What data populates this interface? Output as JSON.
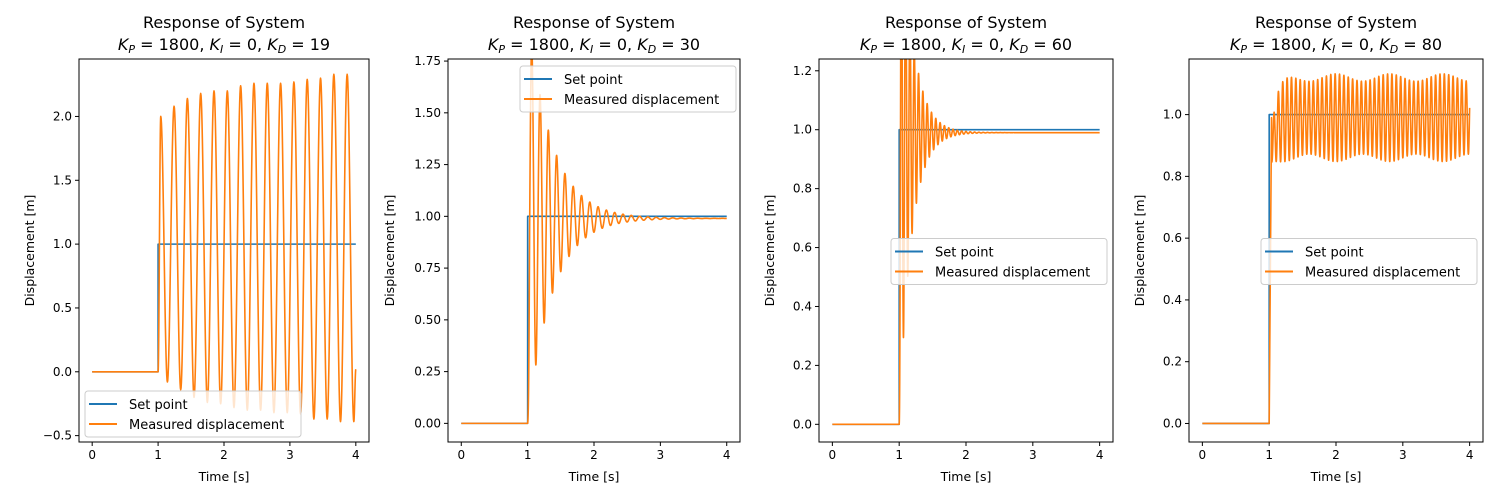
{
  "figure": {
    "colors": {
      "setpoint": "#1f77b4",
      "measured": "#ff7f0e",
      "axes": "#000000",
      "legend_border": "#cccccc"
    }
  },
  "chart_data": [
    {
      "type": "line",
      "title": "Response of System",
      "subtitle": {
        "kp": "1800",
        "ki": "0",
        "kd": "19"
      },
      "xlabel": "Time [s]",
      "ylabel": "Displacement [m]",
      "xlim": [
        -0.2,
        4.2
      ],
      "ylim": [
        -0.55,
        2.45
      ],
      "xticks": [
        0,
        1,
        2,
        3,
        4
      ],
      "yticks": [
        -0.5,
        0.0,
        0.5,
        1.0,
        1.5,
        2.0
      ],
      "ytick_labels": [
        "−0.5",
        "0.0",
        "0.5",
        "1.0",
        "1.5",
        "2.0"
      ],
      "grid": false,
      "legend": {
        "placement": "lower-left",
        "entries": [
          "Set point",
          "Measured displacement"
        ]
      },
      "series": [
        {
          "name": "Set point",
          "kind": "step",
          "t_step": 1.0,
          "before": 0.0,
          "after": 1.0,
          "t_end": 4.0
        },
        {
          "name": "Measured displacement",
          "kind": "sustained",
          "t_step": 1.0,
          "t_end": 4.0,
          "freq_hz": 4.95,
          "peaks": [
            2.0,
            2.08,
            2.14,
            2.18,
            2.2,
            2.2,
            2.24,
            2.26,
            2.26,
            2.26,
            2.27,
            2.29,
            2.3,
            2.33,
            2.33
          ],
          "troughs": [
            -0.08,
            -0.14,
            -0.2,
            -0.24,
            -0.25,
            -0.28,
            -0.3,
            -0.3,
            -0.32,
            -0.32,
            -0.33,
            -0.37,
            -0.37,
            -0.39,
            -0.39
          ],
          "end_value": 0.02
        }
      ]
    },
    {
      "type": "line",
      "title": "Response of System",
      "subtitle": {
        "kp": "1800",
        "ki": "0",
        "kd": "30"
      },
      "xlabel": "Time [s]",
      "ylabel": "Displacement [m]",
      "xlim": [
        -0.2,
        4.2
      ],
      "ylim": [
        -0.09,
        1.76
      ],
      "xticks": [
        0,
        1,
        2,
        3,
        4
      ],
      "yticks": [
        0.0,
        0.25,
        0.5,
        0.75,
        1.0,
        1.25,
        1.5,
        1.75
      ],
      "ytick_labels": [
        "0.00",
        "0.25",
        "0.50",
        "0.75",
        "1.00",
        "1.25",
        "1.50",
        "1.75"
      ],
      "grid": false,
      "legend": {
        "placement": "upper-right",
        "entries": [
          "Set point",
          "Measured displacement"
        ]
      },
      "series": [
        {
          "name": "Set point",
          "kind": "step",
          "t_step": 1.0,
          "before": 0.0,
          "after": 1.0,
          "t_end": 4.0
        },
        {
          "name": "Measured displacement",
          "kind": "damped",
          "t_step": 1.0,
          "t_end": 4.0,
          "freq_hz": 8.0,
          "decay": 2.7,
          "amp": 0.68,
          "steady": 0.99,
          "first_peak": 1.67,
          "first_trough": 0.47
        }
      ]
    },
    {
      "type": "line",
      "title": "Response of System",
      "subtitle": {
        "kp": "1800",
        "ki": "0",
        "kd": "60"
      },
      "xlabel": "Time [s]",
      "ylabel": "Displacement [m]",
      "xlim": [
        -0.2,
        4.2
      ],
      "ylim": [
        -0.06,
        1.24
      ],
      "xticks": [
        0,
        1,
        2,
        3,
        4
      ],
      "yticks": [
        0.0,
        0.2,
        0.4,
        0.6,
        0.8,
        1.0,
        1.2
      ],
      "ytick_labels": [
        "0.0",
        "0.2",
        "0.4",
        "0.6",
        "0.8",
        "1.0",
        "1.2"
      ],
      "grid": false,
      "legend": {
        "placement": "center-right",
        "entries": [
          "Set point",
          "Measured displacement"
        ]
      },
      "series": [
        {
          "name": "Set point",
          "kind": "step",
          "t_step": 1.0,
          "before": 0.0,
          "after": 1.0,
          "t_end": 4.0
        },
        {
          "name": "Measured displacement",
          "kind": "damped",
          "t_step": 1.0,
          "t_end": 4.0,
          "freq_hz": 15.5,
          "decay": 5.5,
          "amp": 0.19,
          "steady": 0.99,
          "first_peak": 1.18,
          "first_trough": 0.86
        }
      ]
    },
    {
      "type": "line",
      "title": "Response of System",
      "subtitle": {
        "kp": "1800",
        "ki": "0",
        "kd": "80"
      },
      "xlabel": "Time [s]",
      "ylabel": "Displacement [m]",
      "xlim": [
        -0.2,
        4.2
      ],
      "ylim": [
        -0.06,
        1.18
      ],
      "xticks": [
        0,
        1,
        2,
        3,
        4
      ],
      "yticks": [
        0.0,
        0.2,
        0.4,
        0.6,
        0.8,
        1.0
      ],
      "ytick_labels": [
        "0.0",
        "0.2",
        "0.4",
        "0.6",
        "0.8",
        "1.0"
      ],
      "grid": false,
      "legend": {
        "placement": "center-right",
        "entries": [
          "Set point",
          "Measured displacement"
        ]
      },
      "series": [
        {
          "name": "Set point",
          "kind": "step",
          "t_step": 1.0,
          "before": 0.0,
          "after": 1.0,
          "t_end": 4.0
        },
        {
          "name": "Measured displacement",
          "kind": "chatter",
          "t_step": 1.0,
          "t_end": 4.0,
          "freq_hz": 15.3,
          "center": 0.99,
          "amp": 0.13,
          "beat_hz": 1.25,
          "beat_amp": 0.012,
          "first_peak": 0.99,
          "first_trough": 0.8,
          "end_value": 1.07
        }
      ]
    }
  ]
}
